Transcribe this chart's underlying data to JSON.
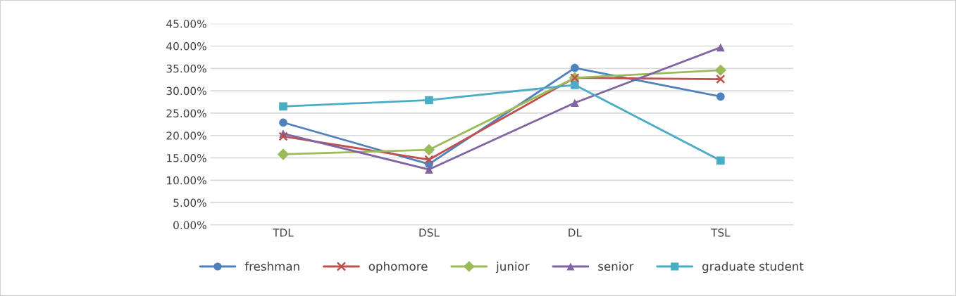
{
  "chart_data": {
    "type": "line",
    "categories": [
      "TDL",
      "DSL",
      "DL",
      "TSL"
    ],
    "series": [
      {
        "name": "freshman",
        "color": "#4f81bd",
        "marker": "circle",
        "values": [
          22.9,
          13.6,
          35.1,
          28.7
        ]
      },
      {
        "name": "ophomore",
        "color": "#c0504d",
        "marker": "cross",
        "values": [
          19.8,
          14.6,
          32.9,
          32.6
        ]
      },
      {
        "name": "junior",
        "color": "#9bbb59",
        "marker": "diamond",
        "values": [
          15.8,
          16.8,
          32.9,
          34.6
        ]
      },
      {
        "name": "senior",
        "color": "#8064a2",
        "marker": "triangle",
        "values": [
          20.4,
          12.4,
          27.3,
          39.7
        ]
      },
      {
        "name": "graduate student",
        "color": "#4bacc6",
        "marker": "square",
        "values": [
          26.5,
          27.9,
          31.3,
          14.4
        ]
      }
    ],
    "ylim": [
      0,
      45
    ],
    "yticks": [
      {
        "value": 0,
        "label": "0.00%"
      },
      {
        "value": 5,
        "label": "5.00%"
      },
      {
        "value": 10,
        "label": "10.00%"
      },
      {
        "value": 15,
        "label": "15.00%"
      },
      {
        "value": 20,
        "label": "20.00%"
      },
      {
        "value": 25,
        "label": "25.00%"
      },
      {
        "value": 30,
        "label": "30.00%"
      },
      {
        "value": 35,
        "label": "35.00%"
      },
      {
        "value": 40,
        "label": "40.00%"
      },
      {
        "value": 45,
        "label": "45.00%"
      }
    ],
    "grid": "y",
    "legend": "bottom",
    "line_style": "solid"
  }
}
